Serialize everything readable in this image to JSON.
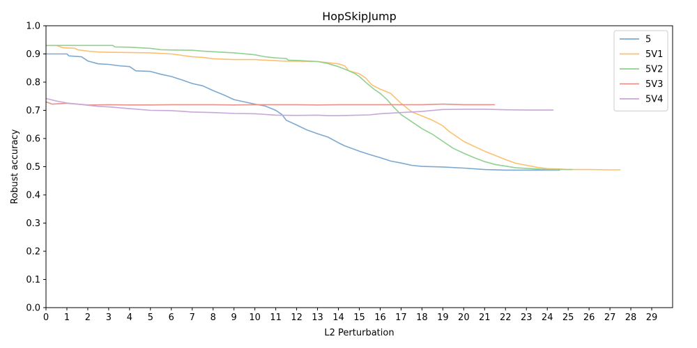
{
  "chart_data": {
    "type": "line",
    "title": "HopSkipJump",
    "xlabel": "L2 Perturbation",
    "ylabel": "Robust accuracy",
    "xlim": [
      0,
      30
    ],
    "ylim": [
      0.0,
      1.0
    ],
    "xticks": [
      0,
      1,
      2,
      3,
      4,
      5,
      6,
      7,
      8,
      9,
      10,
      11,
      12,
      13,
      14,
      15,
      16,
      17,
      18,
      19,
      20,
      21,
      22,
      23,
      24,
      25,
      26,
      27,
      28,
      29
    ],
    "yticks": [
      0.0,
      0.1,
      0.2,
      0.3,
      0.4,
      0.5,
      0.6,
      0.7,
      0.8,
      0.9,
      1.0
    ],
    "grid": false,
    "legend_position": "top-right",
    "series": [
      {
        "name": "5",
        "color": "#7aa8d1",
        "points": [
          [
            0,
            0.9
          ],
          [
            1,
            0.9
          ],
          [
            1.1,
            0.893
          ],
          [
            1.7,
            0.89
          ],
          [
            2,
            0.875
          ],
          [
            2.5,
            0.865
          ],
          [
            3,
            0.863
          ],
          [
            3.5,
            0.858
          ],
          [
            4,
            0.855
          ],
          [
            4.3,
            0.84
          ],
          [
            5,
            0.838
          ],
          [
            5.5,
            0.828
          ],
          [
            6,
            0.82
          ],
          [
            6.5,
            0.808
          ],
          [
            7,
            0.795
          ],
          [
            7.5,
            0.787
          ],
          [
            8,
            0.77
          ],
          [
            8.5,
            0.755
          ],
          [
            9,
            0.738
          ],
          [
            9.5,
            0.73
          ],
          [
            10,
            0.722
          ],
          [
            10.5,
            0.715
          ],
          [
            11,
            0.7
          ],
          [
            11.3,
            0.685
          ],
          [
            11.5,
            0.665
          ],
          [
            12,
            0.648
          ],
          [
            12.5,
            0.63
          ],
          [
            13,
            0.617
          ],
          [
            13.5,
            0.605
          ],
          [
            14,
            0.585
          ],
          [
            14.3,
            0.574
          ],
          [
            15,
            0.555
          ],
          [
            15.5,
            0.543
          ],
          [
            16,
            0.532
          ],
          [
            16.5,
            0.52
          ],
          [
            17,
            0.513
          ],
          [
            17.5,
            0.505
          ],
          [
            18,
            0.501
          ],
          [
            19,
            0.499
          ],
          [
            20,
            0.495
          ],
          [
            21,
            0.49
          ],
          [
            22,
            0.488
          ],
          [
            23,
            0.488
          ],
          [
            24,
            0.488
          ],
          [
            24.6,
            0.488
          ]
        ]
      },
      {
        "name": "5V1",
        "color": "#fdbf6f",
        "points": [
          [
            0,
            0.93
          ],
          [
            0.5,
            0.93
          ],
          [
            0.8,
            0.922
          ],
          [
            1.4,
            0.92
          ],
          [
            1.5,
            0.915
          ],
          [
            2,
            0.91
          ],
          [
            2.5,
            0.907
          ],
          [
            3,
            0.906
          ],
          [
            5,
            0.904
          ],
          [
            6,
            0.9
          ],
          [
            6.5,
            0.895
          ],
          [
            7,
            0.89
          ],
          [
            7.5,
            0.888
          ],
          [
            8,
            0.883
          ],
          [
            9,
            0.88
          ],
          [
            10,
            0.88
          ],
          [
            10.5,
            0.878
          ],
          [
            11,
            0.876
          ],
          [
            11.5,
            0.874
          ],
          [
            12,
            0.874
          ],
          [
            13,
            0.873
          ],
          [
            13.5,
            0.869
          ],
          [
            14,
            0.865
          ],
          [
            14.3,
            0.858
          ],
          [
            14.5,
            0.84
          ],
          [
            15,
            0.83
          ],
          [
            15.3,
            0.815
          ],
          [
            15.6,
            0.79
          ],
          [
            16,
            0.775
          ],
          [
            16.5,
            0.76
          ],
          [
            17,
            0.725
          ],
          [
            17.5,
            0.695
          ],
          [
            18,
            0.68
          ],
          [
            18.5,
            0.665
          ],
          [
            19,
            0.645
          ],
          [
            19.3,
            0.625
          ],
          [
            19.7,
            0.605
          ],
          [
            20,
            0.59
          ],
          [
            20.5,
            0.572
          ],
          [
            21,
            0.555
          ],
          [
            21.5,
            0.54
          ],
          [
            22,
            0.525
          ],
          [
            22.5,
            0.512
          ],
          [
            23,
            0.505
          ],
          [
            23.5,
            0.498
          ],
          [
            24,
            0.493
          ],
          [
            24.5,
            0.492
          ],
          [
            25,
            0.49
          ],
          [
            26,
            0.49
          ],
          [
            27,
            0.489
          ],
          [
            27.5,
            0.489
          ]
        ]
      },
      {
        "name": "5V2",
        "color": "#8fd18f",
        "points": [
          [
            0,
            0.93
          ],
          [
            1,
            0.93
          ],
          [
            2,
            0.93
          ],
          [
            3.2,
            0.93
          ],
          [
            3.3,
            0.925
          ],
          [
            4,
            0.924
          ],
          [
            5,
            0.92
          ],
          [
            5.5,
            0.915
          ],
          [
            6,
            0.914
          ],
          [
            7,
            0.913
          ],
          [
            7.5,
            0.91
          ],
          [
            8,
            0.908
          ],
          [
            9,
            0.904
          ],
          [
            10,
            0.897
          ],
          [
            10.5,
            0.89
          ],
          [
            11,
            0.886
          ],
          [
            11.5,
            0.884
          ],
          [
            11.6,
            0.878
          ],
          [
            12,
            0.877
          ],
          [
            13,
            0.873
          ],
          [
            13.5,
            0.866
          ],
          [
            14,
            0.855
          ],
          [
            14.5,
            0.84
          ],
          [
            14.8,
            0.83
          ],
          [
            15,
            0.82
          ],
          [
            15.3,
            0.8
          ],
          [
            15.7,
            0.775
          ],
          [
            16,
            0.76
          ],
          [
            16.3,
            0.74
          ],
          [
            16.6,
            0.715
          ],
          [
            17,
            0.685
          ],
          [
            17.5,
            0.66
          ],
          [
            18,
            0.635
          ],
          [
            18.5,
            0.615
          ],
          [
            19,
            0.59
          ],
          [
            19.5,
            0.565
          ],
          [
            20,
            0.548
          ],
          [
            20.5,
            0.532
          ],
          [
            21,
            0.518
          ],
          [
            21.5,
            0.508
          ],
          [
            22,
            0.502
          ],
          [
            22.5,
            0.496
          ],
          [
            23,
            0.494
          ],
          [
            24,
            0.49
          ],
          [
            25,
            0.49
          ],
          [
            25.2,
            0.49
          ]
        ]
      },
      {
        "name": "5V3",
        "color": "#e8918b",
        "points": [
          [
            0,
            0.73
          ],
          [
            0.3,
            0.722
          ],
          [
            1,
            0.725
          ],
          [
            2,
            0.719
          ],
          [
            3,
            0.72
          ],
          [
            4,
            0.719
          ],
          [
            5,
            0.719
          ],
          [
            6,
            0.72
          ],
          [
            7,
            0.72
          ],
          [
            8,
            0.72
          ],
          [
            9,
            0.719
          ],
          [
            10,
            0.72
          ],
          [
            11,
            0.72
          ],
          [
            12,
            0.72
          ],
          [
            13,
            0.719
          ],
          [
            14,
            0.72
          ],
          [
            15,
            0.72
          ],
          [
            16,
            0.72
          ],
          [
            17,
            0.72
          ],
          [
            18,
            0.72
          ],
          [
            19,
            0.722
          ],
          [
            20,
            0.72
          ],
          [
            21,
            0.72
          ],
          [
            21.5,
            0.72
          ]
        ]
      },
      {
        "name": "5V4",
        "color": "#c7a6d9",
        "points": [
          [
            0,
            0.742
          ],
          [
            0.5,
            0.733
          ],
          [
            1,
            0.726
          ],
          [
            1.5,
            0.722
          ],
          [
            2,
            0.718
          ],
          [
            2.5,
            0.714
          ],
          [
            3,
            0.712
          ],
          [
            4,
            0.706
          ],
          [
            5,
            0.7
          ],
          [
            6,
            0.699
          ],
          [
            7,
            0.694
          ],
          [
            8,
            0.692
          ],
          [
            9,
            0.689
          ],
          [
            10,
            0.688
          ],
          [
            11,
            0.683
          ],
          [
            12,
            0.682
          ],
          [
            13,
            0.683
          ],
          [
            13.5,
            0.681
          ],
          [
            14,
            0.681
          ],
          [
            15,
            0.683
          ],
          [
            15.5,
            0.684
          ],
          [
            16,
            0.688
          ],
          [
            16.5,
            0.69
          ],
          [
            17,
            0.692
          ],
          [
            18,
            0.696
          ],
          [
            19,
            0.703
          ],
          [
            20,
            0.704
          ],
          [
            21,
            0.704
          ],
          [
            22,
            0.702
          ],
          [
            23,
            0.701
          ],
          [
            24,
            0.701
          ],
          [
            24.3,
            0.701
          ]
        ]
      }
    ]
  }
}
